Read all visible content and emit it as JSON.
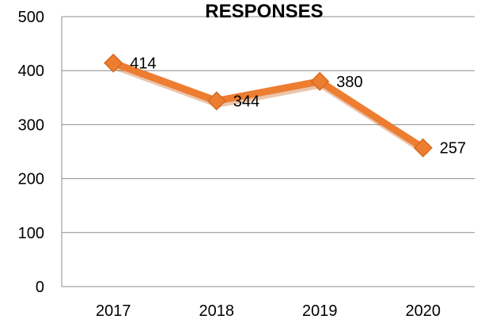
{
  "chart_data": {
    "type": "line",
    "title": "RESPONSES",
    "xlabel": "",
    "ylabel": "",
    "categories": [
      "2017",
      "2018",
      "2019",
      "2020"
    ],
    "series": [
      {
        "values": [
          414,
          344,
          380,
          257
        ],
        "color": "#ED7D31",
        "marker": "diamond"
      }
    ],
    "ylim": [
      0,
      500
    ],
    "yticks": [
      0,
      100,
      200,
      300,
      400,
      500
    ],
    "grid": true,
    "legend": "none",
    "data_labels": [
      "414",
      "344",
      "380",
      "257"
    ]
  }
}
